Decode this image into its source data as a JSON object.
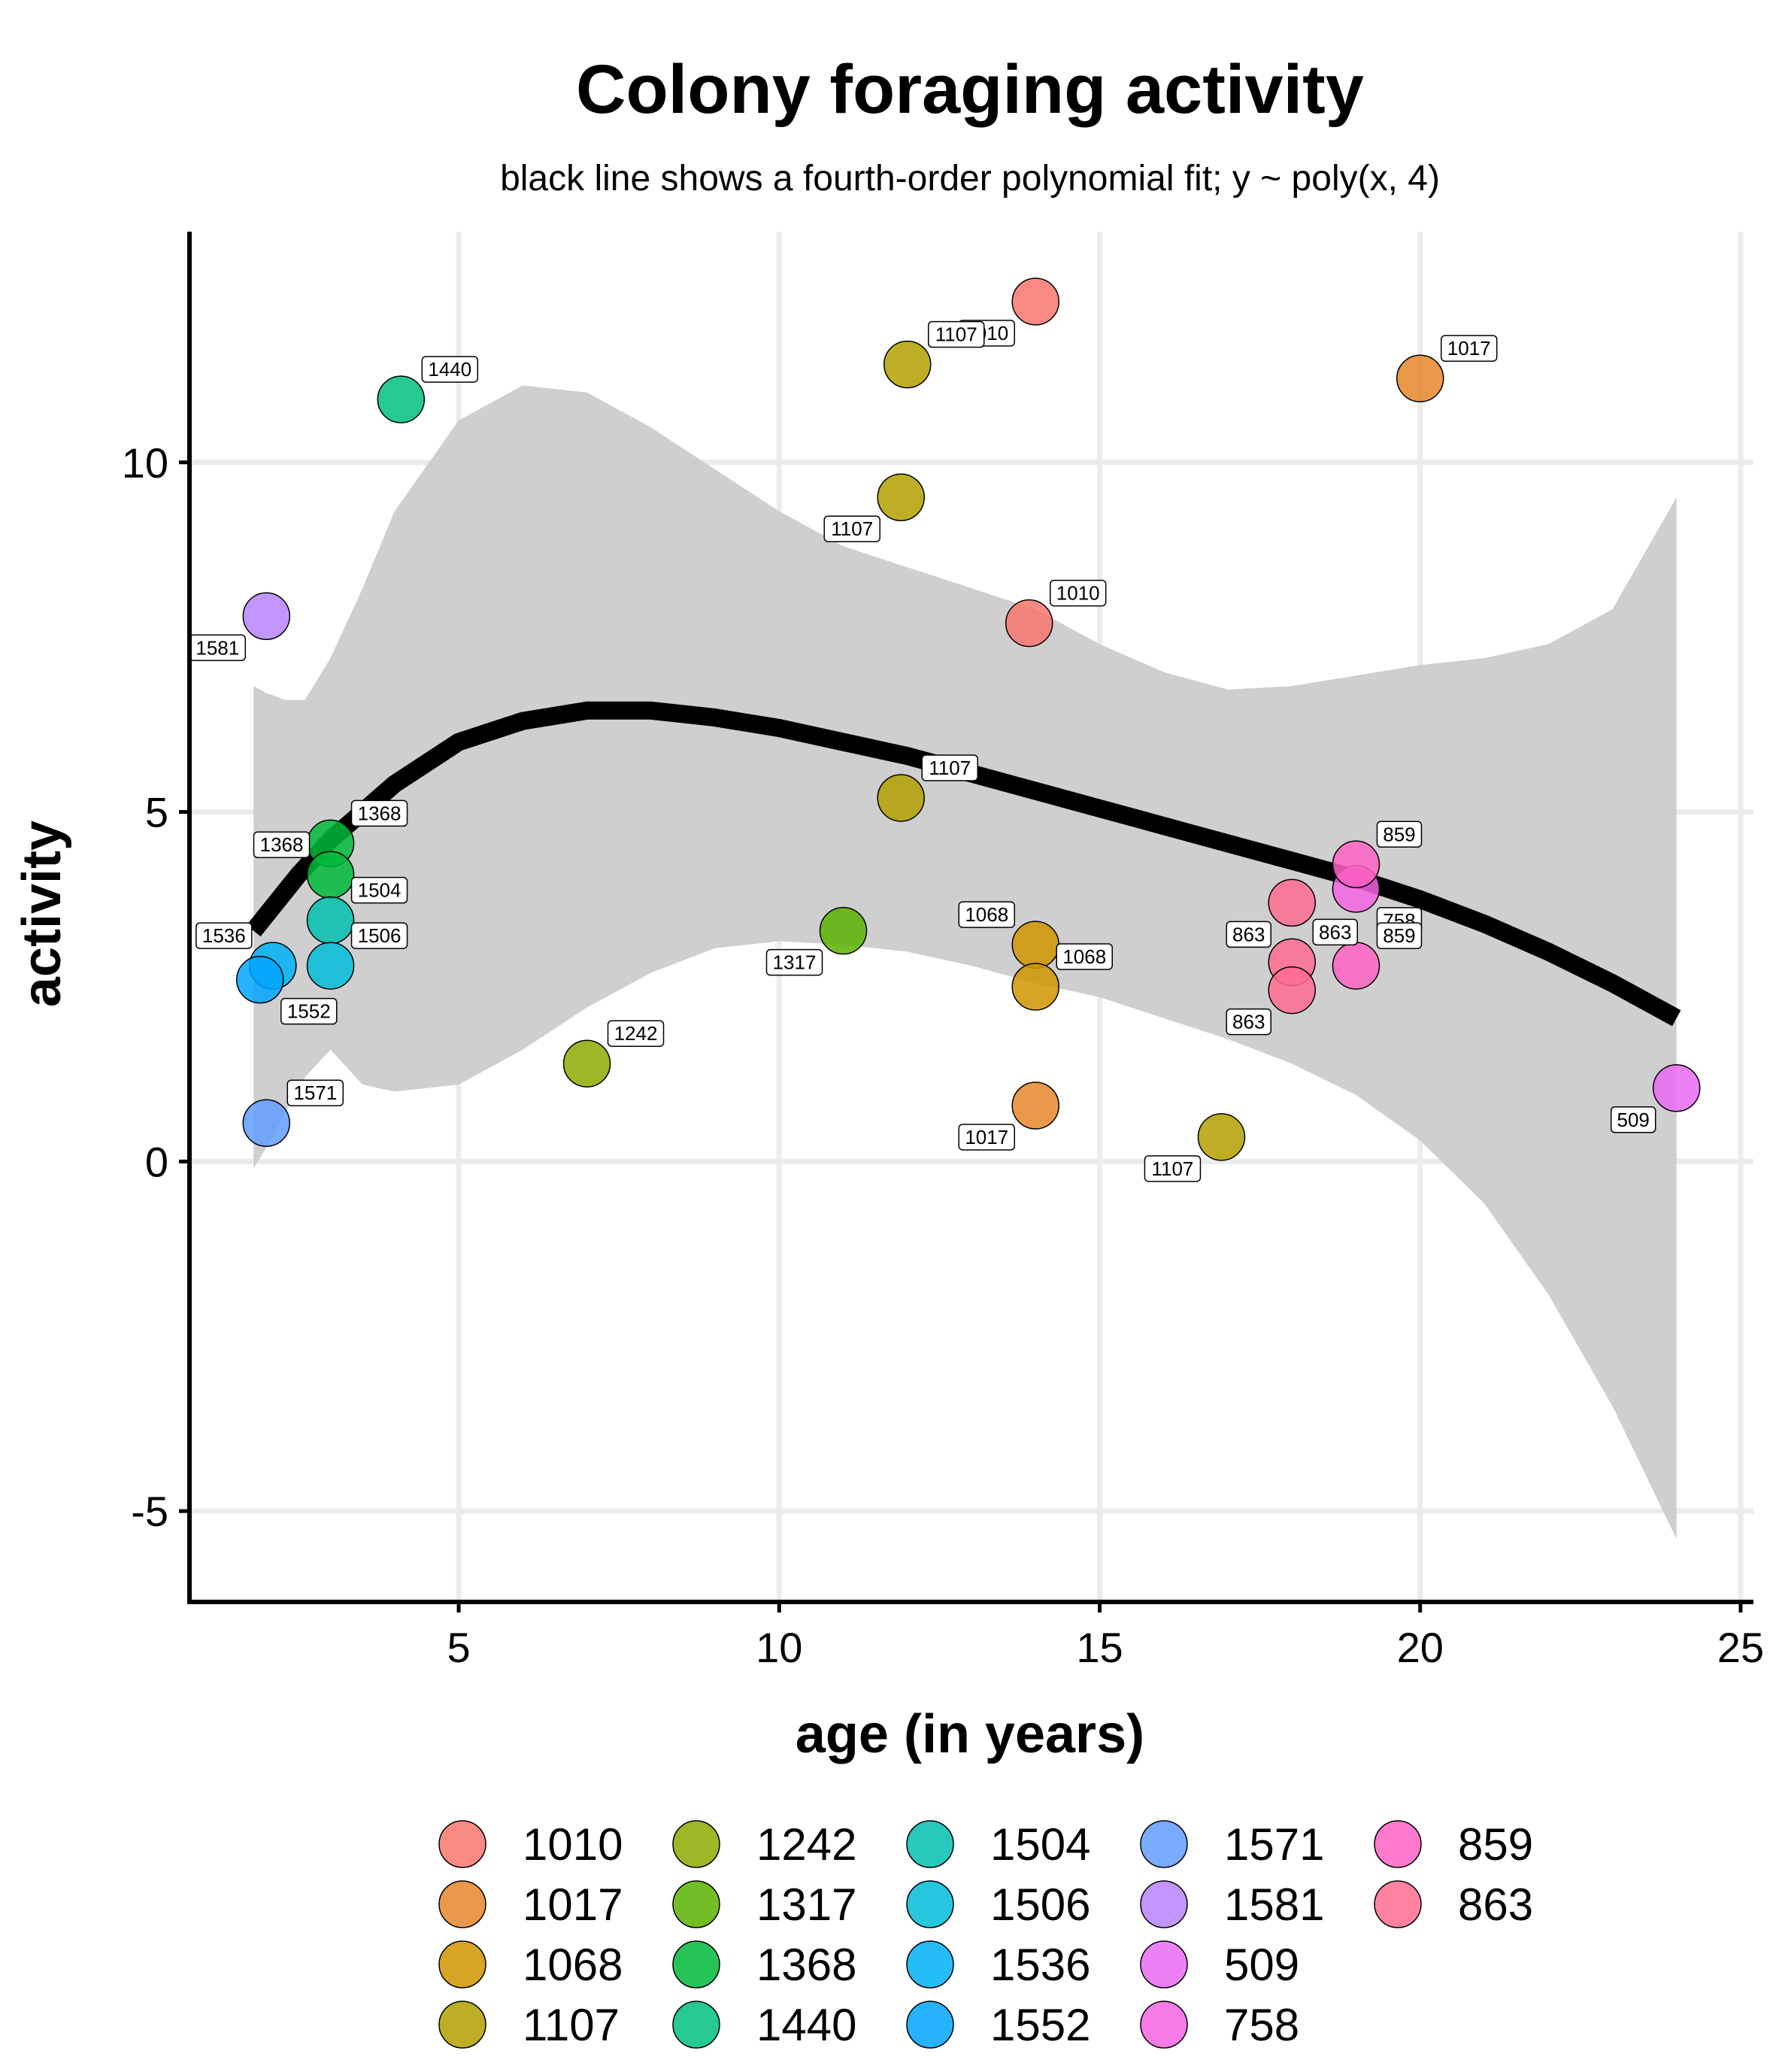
{
  "chart_data": {
    "type": "scatter",
    "title": "Colony foraging activity",
    "subtitle": "black line shows a fourth-order polynomial fit; y ~ poly(x, 4)",
    "xlabel": "age (in years)",
    "ylabel": "activity",
    "xlim": [
      0.8,
      25.2
    ],
    "ylim": [
      -6.3,
      13.3
    ],
    "xticks": [
      5,
      10,
      15,
      20,
      25
    ],
    "yticks": [
      -5,
      0,
      5,
      10
    ],
    "xtick_labels": [
      "5",
      "10",
      "15",
      "20",
      "25"
    ],
    "ytick_labels": [
      "-5",
      "0",
      "5",
      "10"
    ],
    "grid": true,
    "legend_position": "bottom",
    "legend_columns": 5,
    "legend_title": "",
    "point_label_color": "#000000",
    "groups": [
      {
        "name": "1010",
        "color": "#F8766D"
      },
      {
        "name": "1017",
        "color": "#E6862A"
      },
      {
        "name": "1068",
        "color": "#D09400"
      },
      {
        "name": "1107",
        "color": "#B2A000"
      },
      {
        "name": "1242",
        "color": "#8CAB00"
      },
      {
        "name": "1317",
        "color": "#5BB300"
      },
      {
        "name": "1368",
        "color": "#00BA38"
      },
      {
        "name": "1440",
        "color": "#00BF7D"
      },
      {
        "name": "1504",
        "color": "#00C0AF"
      },
      {
        "name": "1506",
        "color": "#00BCD8"
      },
      {
        "name": "1536",
        "color": "#00B0F6"
      },
      {
        "name": "1552",
        "color": "#00A5FF"
      },
      {
        "name": "1571",
        "color": "#619CFF"
      },
      {
        "name": "1581",
        "color": "#B983FF"
      },
      {
        "name": "509",
        "color": "#E76BF3"
      },
      {
        "name": "758",
        "color": "#F564E3"
      },
      {
        "name": "859",
        "color": "#FF61C3"
      },
      {
        "name": "863",
        "color": "#FF6C91"
      }
    ],
    "points": [
      {
        "x": 14.0,
        "y": 12.3,
        "group": "1010",
        "label": "1010",
        "label_pos": "below-left"
      },
      {
        "x": 13.9,
        "y": 7.7,
        "group": "1010",
        "label": "1010",
        "label_pos": "above-right"
      },
      {
        "x": 20.0,
        "y": 11.2,
        "group": "1017",
        "label": "1017",
        "label_pos": "above-right"
      },
      {
        "x": 14.0,
        "y": 0.8,
        "group": "1017",
        "label": "1017",
        "label_pos": "below-left"
      },
      {
        "x": 14.0,
        "y": 3.1,
        "group": "1068",
        "label": "1068",
        "label_pos": "above-left"
      },
      {
        "x": 14.0,
        "y": 2.5,
        "group": "1068",
        "label": "1068",
        "label_pos": "above-right"
      },
      {
        "x": 12.0,
        "y": 11.4,
        "group": "1107",
        "label": "1107",
        "label_pos": "above-right"
      },
      {
        "x": 11.9,
        "y": 9.5,
        "group": "1107",
        "label": "1107",
        "label_pos": "below-left"
      },
      {
        "x": 11.9,
        "y": 5.2,
        "group": "1107",
        "label": "1107",
        "label_pos": "above-right"
      },
      {
        "x": 16.9,
        "y": 0.35,
        "group": "1107",
        "label": "1107",
        "label_pos": "below-left"
      },
      {
        "x": 7.0,
        "y": 1.4,
        "group": "1242",
        "label": "1242",
        "label_pos": "above-right"
      },
      {
        "x": 11.0,
        "y": 3.3,
        "group": "1317",
        "label": "1317",
        "label_pos": "below-left"
      },
      {
        "x": 3.0,
        "y": 4.55,
        "group": "1368",
        "label": "1368",
        "label_pos": "above-right"
      },
      {
        "x": 3.0,
        "y": 4.1,
        "group": "1368",
        "label": "1368",
        "label_pos": "above-left"
      },
      {
        "x": 4.1,
        "y": 10.9,
        "group": "1440",
        "label": "1440",
        "label_pos": "above-right"
      },
      {
        "x": 3.0,
        "y": 3.45,
        "group": "1504",
        "label": "1504",
        "label_pos": "above-right"
      },
      {
        "x": 3.0,
        "y": 2.8,
        "group": "1506",
        "label": "1506",
        "label_pos": "above-right"
      },
      {
        "x": 2.1,
        "y": 2.8,
        "group": "1536",
        "label": "1536",
        "label_pos": "above-left"
      },
      {
        "x": 1.9,
        "y": 2.6,
        "group": "1552",
        "label": "1552",
        "label_pos": "below-right"
      },
      {
        "x": 2.0,
        "y": 0.55,
        "group": "1571",
        "label": "1571",
        "label_pos": "above-right"
      },
      {
        "x": 2.0,
        "y": 7.8,
        "group": "1581",
        "label": "1581",
        "label_pos": "below-left"
      },
      {
        "x": 24.0,
        "y": 1.05,
        "group": "509",
        "label": "509",
        "label_pos": "below-left"
      },
      {
        "x": 19.0,
        "y": 3.9,
        "group": "758",
        "label": "758",
        "label_pos": "below-right"
      },
      {
        "x": 19.0,
        "y": 4.25,
        "group": "859",
        "label": "859",
        "label_pos": "above-right"
      },
      {
        "x": 19.0,
        "y": 2.8,
        "group": "859",
        "label": "859",
        "label_pos": "above-right"
      },
      {
        "x": 18.0,
        "y": 3.7,
        "group": "863",
        "label": "863",
        "label_pos": "below-left"
      },
      {
        "x": 18.0,
        "y": 2.85,
        "group": "863",
        "label": "863",
        "label_pos": "above-right"
      },
      {
        "x": 18.0,
        "y": 2.45,
        "group": "863",
        "label": "863",
        "label_pos": "below-left"
      }
    ],
    "fit_line": {
      "x": [
        1.8,
        2.5,
        3.0,
        4.0,
        5.0,
        6.0,
        7.0,
        8.0,
        9.0,
        10.0,
        11.0,
        12.0,
        13.0,
        14.0,
        15.0,
        16.0,
        17.0,
        18.0,
        19.0,
        20.0,
        21.0,
        22.0,
        23.0,
        24.0
      ],
      "y": [
        3.3,
        4.1,
        4.6,
        5.4,
        6.0,
        6.3,
        6.45,
        6.45,
        6.35,
        6.2,
        6.0,
        5.8,
        5.55,
        5.3,
        5.05,
        4.8,
        4.55,
        4.3,
        4.05,
        3.75,
        3.4,
        3.0,
        2.55,
        2.05
      ]
    },
    "confidence_band": {
      "x": [
        1.8,
        2.0,
        2.3,
        2.6,
        3.0,
        3.5,
        4.0,
        5.0,
        6.0,
        7.0,
        8.0,
        9.0,
        10.0,
        11.0,
        12.0,
        13.0,
        14.0,
        15.0,
        16.0,
        17.0,
        18.0,
        19.0,
        20.0,
        21.0,
        22.0,
        23.0,
        24.0
      ],
      "upper": [
        6.8,
        6.7,
        6.6,
        6.6,
        7.2,
        8.2,
        9.3,
        10.6,
        11.1,
        11.0,
        10.5,
        9.9,
        9.3,
        8.8,
        8.5,
        8.2,
        7.9,
        7.4,
        7.0,
        6.75,
        6.8,
        6.95,
        7.1,
        7.2,
        7.4,
        7.9,
        9.5
      ],
      "lower": [
        -0.1,
        0.2,
        0.7,
        1.2,
        1.6,
        1.1,
        1.0,
        1.1,
        1.6,
        2.2,
        2.7,
        3.05,
        3.15,
        3.1,
        3.0,
        2.8,
        2.55,
        2.35,
        2.05,
        1.75,
        1.4,
        0.95,
        0.3,
        -0.6,
        -1.9,
        -3.5,
        -5.4
      ]
    },
    "band_color": "#cccccc",
    "fit_color": "#000000",
    "grid_color": "#ebebeb"
  }
}
